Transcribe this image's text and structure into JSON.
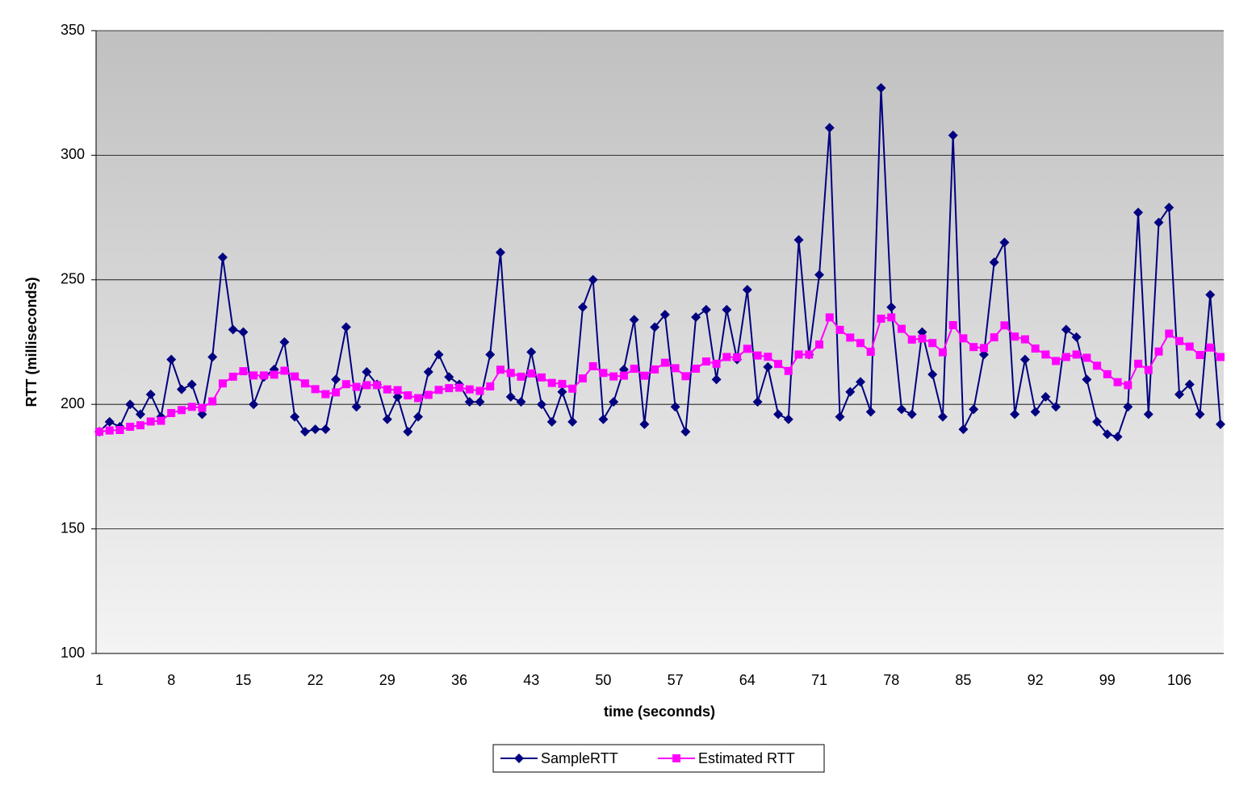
{
  "chart_data": {
    "type": "line",
    "x_label": "time (seconnds)",
    "y_label": "RTT (milliseconds)",
    "categories": [
      1,
      null,
      null,
      null,
      null,
      null,
      null,
      8,
      null,
      null,
      null,
      null,
      null,
      null,
      15,
      null,
      null,
      null,
      null,
      null,
      null,
      22,
      null,
      null,
      null,
      null,
      null,
      null,
      29,
      null,
      null,
      null,
      null,
      null,
      null,
      36,
      null,
      null,
      null,
      null,
      null,
      null,
      43,
      null,
      null,
      null,
      null,
      null,
      null,
      50,
      null,
      null,
      null,
      null,
      null,
      null,
      57,
      null,
      null,
      null,
      null,
      null,
      null,
      64,
      null,
      null,
      null,
      null,
      null,
      null,
      71,
      null,
      null,
      null,
      null,
      null,
      null,
      78,
      null,
      null,
      null,
      null,
      null,
      null,
      85,
      null,
      null,
      null,
      null,
      null,
      null,
      92,
      null,
      null,
      null,
      null,
      null,
      null,
      99,
      null,
      null,
      null,
      null,
      null,
      null,
      106,
      null,
      null,
      null,
      null
    ],
    "series": [
      {
        "name": "SampleRTT",
        "color": "#000080",
        "marker": "diamond",
        "values": [
          189,
          193,
          191,
          200,
          196,
          204,
          195,
          218,
          206,
          208,
          196,
          219,
          259,
          230,
          229,
          200,
          211,
          214,
          225,
          195,
          189,
          190,
          190,
          210,
          231,
          199,
          213,
          208,
          194,
          203,
          189,
          195,
          213,
          220,
          211,
          208,
          201,
          201,
          220,
          261,
          203,
          201,
          221,
          200,
          193,
          205,
          193,
          239,
          250,
          194,
          201,
          214,
          234,
          192,
          231,
          236,
          199,
          189,
          235,
          238,
          210,
          238,
          218,
          246,
          201,
          215,
          196,
          194,
          266,
          220,
          252,
          311,
          195,
          205,
          209,
          197,
          327,
          239,
          198,
          196,
          229,
          212,
          195,
          308,
          190,
          198,
          220,
          257,
          265,
          196,
          218,
          197,
          203,
          199,
          230,
          227,
          210,
          193,
          188,
          187,
          199,
          277,
          196,
          273,
          279,
          204,
          208,
          196,
          244,
          192
        ]
      },
      {
        "name": "Estimated RTT",
        "color": "#ff00ff",
        "marker": "square",
        "values": [
          189,
          189.5,
          189.7,
          191.0,
          191.6,
          193.1,
          193.4,
          196.5,
          197.7,
          199.0,
          198.6,
          201.2,
          208.4,
          211.1,
          213.3,
          211.6,
          211.6,
          211.9,
          213.5,
          211.2,
          208.4,
          206.1,
          204.1,
          204.8,
          208.1,
          207.0,
          207.7,
          207.7,
          206.0,
          205.7,
          203.6,
          202.5,
          203.8,
          205.8,
          206.5,
          206.7,
          206.0,
          205.4,
          207.2,
          213.9,
          212.6,
          211.1,
          212.4,
          210.8,
          208.6,
          208.2,
          206.3,
          210.4,
          215.3,
          212.6,
          211.2,
          211.5,
          214.3,
          211.5,
          214.0,
          216.7,
          214.5,
          211.3,
          214.3,
          217.2,
          216.3,
          219.0,
          218.9,
          222.3,
          219.6,
          219.1,
          216.2,
          213.4,
          220.0,
          220.0,
          224.0,
          234.9,
          229.9,
          226.8,
          224.6,
          221.1,
          234.4,
          234.9,
          230.3,
          226.0,
          226.4,
          224.6,
          220.9,
          231.8,
          226.5,
          223.0,
          222.6,
          226.9,
          231.7,
          227.2,
          226.1,
          222.4,
          220.0,
          217.4,
          219.0,
          220.0,
          218.7,
          215.5,
          212.1,
          208.9,
          207.7,
          216.3,
          213.8,
          221.2,
          228.4,
          225.4,
          223.2,
          219.8,
          222.8,
          219.0
        ]
      }
    ],
    "ylim": [
      100,
      350
    ],
    "yticks": [
      100,
      150,
      200,
      250,
      300,
      350
    ],
    "grid": true,
    "legend": "bottom"
  }
}
